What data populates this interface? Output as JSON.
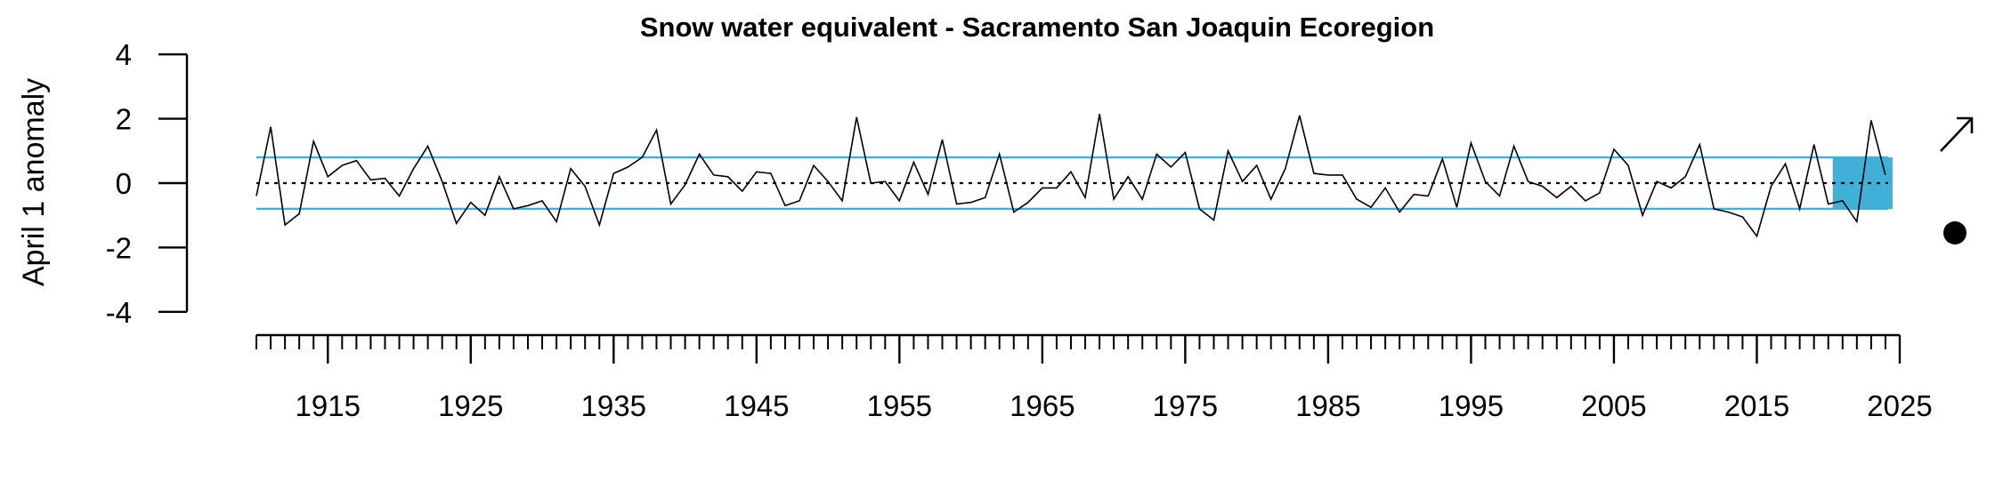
{
  "chart_data": {
    "type": "line",
    "title": "Snow water equivalent - Sacramento San Joaquin Ecoregion",
    "ylabel": "April 1 anomaly",
    "xlabel": "",
    "ylim": [
      -4,
      4
    ],
    "y_ticks": [
      4,
      2,
      0,
      -2,
      -4
    ],
    "y_tick_labels": [
      "4",
      "2",
      "0",
      "-2",
      "-4"
    ],
    "xlim": [
      1910,
      2025
    ],
    "x_ticks": [
      1915,
      1925,
      1935,
      1945,
      1955,
      1965,
      1975,
      1985,
      1995,
      2005,
      2015,
      2025
    ],
    "x_tick_labels": [
      "1915",
      "1925",
      "1935",
      "1945",
      "1955",
      "1965",
      "1975",
      "1985",
      "1995",
      "2005",
      "2015",
      "2025"
    ],
    "minor_tick_step": 1,
    "grid": false,
    "legend": "none",
    "reference_bands": {
      "upper": 0.8,
      "lower": -0.8,
      "color": "#41b0d8"
    },
    "mean_line": {
      "value": 0,
      "style": "dotted"
    },
    "highlight_period": {
      "x_start": 2020,
      "x_end": 2024,
      "color": "#41b0d8"
    },
    "trend_indicator": "arrow-up-right",
    "recent_status_indicator": "filled-circle-below",
    "series": [
      {
        "x": [
          1910,
          1911,
          1912,
          1913,
          1914,
          1915,
          1916,
          1917,
          1918,
          1919,
          1920,
          1921,
          1922,
          1923,
          1924,
          1925,
          1926,
          1927,
          1928,
          1929,
          1930,
          1931,
          1932,
          1933,
          1934,
          1935,
          1936,
          1937,
          1938,
          1939,
          1940,
          1941,
          1942,
          1943,
          1944,
          1945,
          1946,
          1947,
          1948,
          1949,
          1950,
          1951,
          1952,
          1953,
          1954,
          1955,
          1956,
          1957,
          1958,
          1959,
          1960,
          1961,
          1962,
          1963,
          1964,
          1965,
          1966,
          1967,
          1968,
          1969,
          1970,
          1971,
          1972,
          1973,
          1974,
          1975,
          1976,
          1977,
          1978,
          1979,
          1980,
          1981,
          1982,
          1983,
          1984,
          1985,
          1986,
          1987,
          1988,
          1989,
          1990,
          1991,
          1992,
          1993,
          1994,
          1995,
          1996,
          1997,
          1998,
          1999,
          2000,
          2001,
          2002,
          2003,
          2004,
          2005,
          2006,
          2007,
          2008,
          2009,
          2010,
          2011,
          2012,
          2013,
          2014,
          2015,
          2016,
          2017,
          2018,
          2019,
          2020,
          2021,
          2022,
          2023,
          2024
        ],
        "values": [
          -0.4,
          1.75,
          -1.3,
          -0.95,
          1.3,
          0.2,
          0.55,
          0.7,
          0.1,
          0.15,
          -0.4,
          0.45,
          1.15,
          0.05,
          -1.25,
          -0.6,
          -1.0,
          0.2,
          -0.8,
          -0.7,
          -0.55,
          -1.2,
          0.45,
          -0.1,
          -1.3,
          0.3,
          0.5,
          0.8,
          1.65,
          -0.65,
          -0.05,
          0.9,
          0.25,
          0.2,
          -0.25,
          0.35,
          0.3,
          -0.7,
          -0.55,
          0.55,
          0.05,
          -0.55,
          2.05,
          0.0,
          0.05,
          -0.55,
          0.65,
          -0.35,
          1.35,
          -0.65,
          -0.6,
          -0.45,
          0.9,
          -0.9,
          -0.6,
          -0.15,
          -0.15,
          0.35,
          -0.45,
          2.15,
          -0.5,
          0.2,
          -0.5,
          0.9,
          0.5,
          0.95,
          -0.8,
          -1.15,
          1.0,
          0.05,
          0.55,
          -0.5,
          0.45,
          2.1,
          0.3,
          0.25,
          0.25,
          -0.5,
          -0.75,
          -0.15,
          -0.9,
          -0.35,
          -0.4,
          0.75,
          -0.75,
          1.25,
          0.05,
          -0.4,
          1.15,
          0.05,
          -0.1,
          -0.45,
          -0.1,
          -0.55,
          -0.3,
          1.05,
          0.55,
          -1.0,
          0.05,
          -0.15,
          0.2,
          1.2,
          -0.8,
          -0.9,
          -1.05,
          -1.65,
          -0.1,
          0.6,
          -0.8,
          1.2,
          -0.65,
          -0.55,
          -1.2,
          1.95,
          0.25
        ]
      }
    ]
  }
}
